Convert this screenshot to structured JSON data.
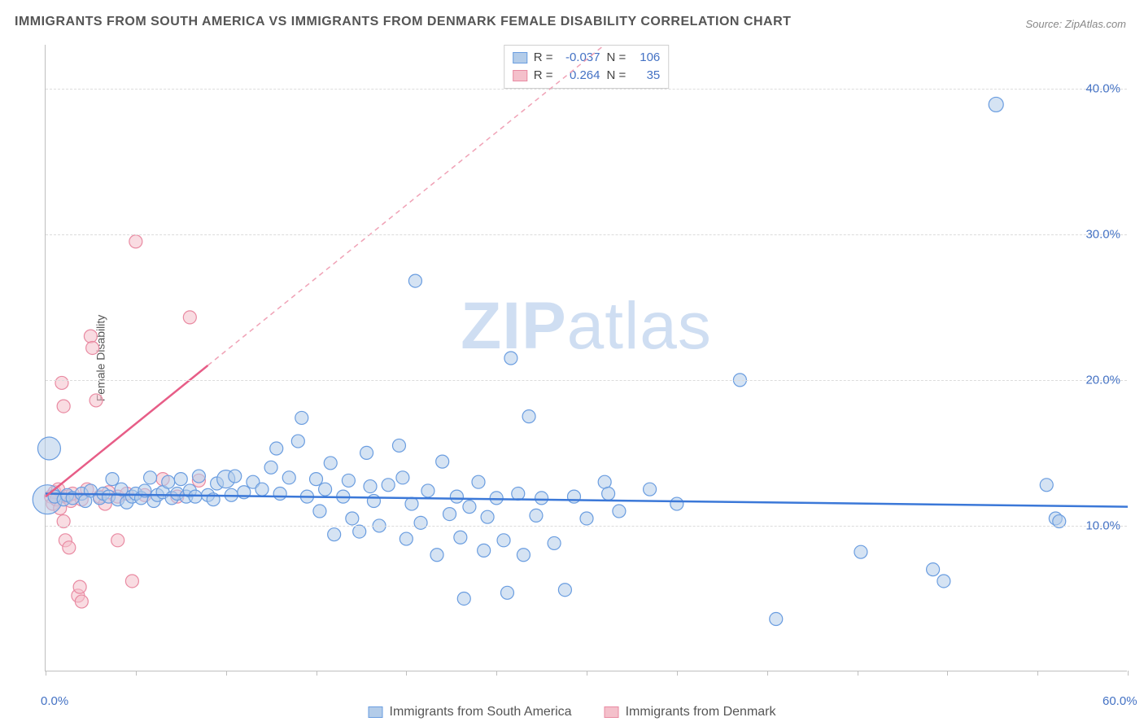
{
  "title": "IMMIGRANTS FROM SOUTH AMERICA VS IMMIGRANTS FROM DENMARK FEMALE DISABILITY CORRELATION CHART",
  "source": "Source: ZipAtlas.com",
  "ylabel": "Female Disability",
  "watermark_bold": "ZIP",
  "watermark_rest": "atlas",
  "chart": {
    "type": "scatter",
    "background_color": "#ffffff",
    "grid_color": "#dcdcdc",
    "axis_color": "#bfbfbf",
    "xlim": [
      0,
      60
    ],
    "ylim": [
      0,
      43
    ],
    "x_ticks": [
      0,
      5,
      10,
      15,
      20,
      25,
      30,
      35,
      40,
      45,
      50,
      55,
      60
    ],
    "x_tick_labels_shown": {
      "0": "0.0%",
      "60": "60.0%"
    },
    "y_gridlines": [
      10,
      20,
      30,
      40
    ],
    "y_tick_labels": {
      "10": "10.0%",
      "20": "20.0%",
      "30": "30.0%",
      "40": "40.0%"
    },
    "tick_label_color": "#4472c4",
    "tick_label_fontsize": 15,
    "series": [
      {
        "name": "Immigrants from South America",
        "fill": "#b3cce9",
        "stroke": "#6a9de0",
        "fill_opacity": 0.55,
        "marker_r_default": 8,
        "trend": {
          "color": "#3b78d8",
          "width": 2.5,
          "style": "solid",
          "y1": 12.2,
          "y2": 11.3
        },
        "stats": {
          "R": "-0.037",
          "N": "106"
        },
        "points": [
          {
            "x": 0.1,
            "y": 11.8,
            "r": 18
          },
          {
            "x": 0.2,
            "y": 15.3,
            "r": 14
          },
          {
            "x": 0.5,
            "y": 12.0
          },
          {
            "x": 1.0,
            "y": 11.8
          },
          {
            "x": 1.2,
            "y": 12.1
          },
          {
            "x": 1.5,
            "y": 11.9
          },
          {
            "x": 2.0,
            "y": 12.2
          },
          {
            "x": 2.2,
            "y": 11.7
          },
          {
            "x": 2.5,
            "y": 12.4
          },
          {
            "x": 3.0,
            "y": 11.9
          },
          {
            "x": 3.2,
            "y": 12.2
          },
          {
            "x": 3.5,
            "y": 12.0
          },
          {
            "x": 3.7,
            "y": 13.2
          },
          {
            "x": 4.0,
            "y": 11.8
          },
          {
            "x": 4.2,
            "y": 12.5
          },
          {
            "x": 4.5,
            "y": 11.6
          },
          {
            "x": 4.8,
            "y": 12.0
          },
          {
            "x": 5.0,
            "y": 12.2
          },
          {
            "x": 5.3,
            "y": 11.9
          },
          {
            "x": 5.5,
            "y": 12.4
          },
          {
            "x": 5.8,
            "y": 13.3
          },
          {
            "x": 6.0,
            "y": 11.7
          },
          {
            "x": 6.2,
            "y": 12.1
          },
          {
            "x": 6.5,
            "y": 12.3
          },
          {
            "x": 6.8,
            "y": 13.0
          },
          {
            "x": 7.0,
            "y": 11.9
          },
          {
            "x": 7.3,
            "y": 12.2
          },
          {
            "x": 7.5,
            "y": 13.2
          },
          {
            "x": 7.8,
            "y": 12.0
          },
          {
            "x": 8.0,
            "y": 12.4
          },
          {
            "x": 8.3,
            "y": 12.0
          },
          {
            "x": 8.5,
            "y": 13.4
          },
          {
            "x": 9.0,
            "y": 12.1
          },
          {
            "x": 9.3,
            "y": 11.8
          },
          {
            "x": 9.5,
            "y": 12.9
          },
          {
            "x": 10.0,
            "y": 13.2,
            "r": 11
          },
          {
            "x": 10.3,
            "y": 12.1
          },
          {
            "x": 10.5,
            "y": 13.4
          },
          {
            "x": 11.0,
            "y": 12.3
          },
          {
            "x": 11.5,
            "y": 13.0
          },
          {
            "x": 12.0,
            "y": 12.5
          },
          {
            "x": 12.5,
            "y": 14.0
          },
          {
            "x": 12.8,
            "y": 15.3
          },
          {
            "x": 13.0,
            "y": 12.2
          },
          {
            "x": 13.5,
            "y": 13.3
          },
          {
            "x": 14.0,
            "y": 15.8
          },
          {
            "x": 14.2,
            "y": 17.4
          },
          {
            "x": 14.5,
            "y": 12.0
          },
          {
            "x": 15.0,
            "y": 13.2
          },
          {
            "x": 15.2,
            "y": 11.0
          },
          {
            "x": 15.5,
            "y": 12.5
          },
          {
            "x": 15.8,
            "y": 14.3
          },
          {
            "x": 16.0,
            "y": 9.4
          },
          {
            "x": 16.5,
            "y": 12.0
          },
          {
            "x": 16.8,
            "y": 13.1
          },
          {
            "x": 17.0,
            "y": 10.5
          },
          {
            "x": 17.4,
            "y": 9.6
          },
          {
            "x": 17.8,
            "y": 15.0
          },
          {
            "x": 18.0,
            "y": 12.7
          },
          {
            "x": 18.2,
            "y": 11.7
          },
          {
            "x": 18.5,
            "y": 10.0
          },
          {
            "x": 19.0,
            "y": 12.8
          },
          {
            "x": 19.6,
            "y": 15.5
          },
          {
            "x": 19.8,
            "y": 13.3
          },
          {
            "x": 20.0,
            "y": 9.1
          },
          {
            "x": 20.3,
            "y": 11.5
          },
          {
            "x": 20.5,
            "y": 26.8
          },
          {
            "x": 20.8,
            "y": 10.2
          },
          {
            "x": 21.2,
            "y": 12.4
          },
          {
            "x": 21.7,
            "y": 8.0
          },
          {
            "x": 22.0,
            "y": 14.4
          },
          {
            "x": 22.4,
            "y": 10.8
          },
          {
            "x": 22.8,
            "y": 12.0
          },
          {
            "x": 23.0,
            "y": 9.2
          },
          {
            "x": 23.2,
            "y": 5.0
          },
          {
            "x": 23.5,
            "y": 11.3
          },
          {
            "x": 24.0,
            "y": 13.0
          },
          {
            "x": 24.3,
            "y": 8.3
          },
          {
            "x": 24.5,
            "y": 10.6
          },
          {
            "x": 25.0,
            "y": 11.9
          },
          {
            "x": 25.4,
            "y": 9.0
          },
          {
            "x": 25.6,
            "y": 5.4
          },
          {
            "x": 25.8,
            "y": 21.5
          },
          {
            "x": 26.2,
            "y": 12.2
          },
          {
            "x": 26.5,
            "y": 8.0
          },
          {
            "x": 26.8,
            "y": 17.5
          },
          {
            "x": 27.2,
            "y": 10.7
          },
          {
            "x": 27.5,
            "y": 11.9
          },
          {
            "x": 28.2,
            "y": 8.8
          },
          {
            "x": 28.8,
            "y": 5.6
          },
          {
            "x": 29.3,
            "y": 12.0
          },
          {
            "x": 30.0,
            "y": 10.5
          },
          {
            "x": 31.0,
            "y": 13.0
          },
          {
            "x": 31.2,
            "y": 12.2
          },
          {
            "x": 31.8,
            "y": 11.0
          },
          {
            "x": 33.5,
            "y": 12.5
          },
          {
            "x": 35.0,
            "y": 11.5
          },
          {
            "x": 38.5,
            "y": 20.0
          },
          {
            "x": 40.5,
            "y": 3.6
          },
          {
            "x": 45.2,
            "y": 8.2
          },
          {
            "x": 49.2,
            "y": 7.0
          },
          {
            "x": 49.8,
            "y": 6.2
          },
          {
            "x": 52.7,
            "y": 38.9,
            "r": 9
          },
          {
            "x": 55.5,
            "y": 12.8
          },
          {
            "x": 56.0,
            "y": 10.5
          },
          {
            "x": 56.2,
            "y": 10.3
          }
        ]
      },
      {
        "name": "Immigrants from Denmark",
        "fill": "#f4c0cb",
        "stroke": "#e98aa2",
        "fill_opacity": 0.55,
        "marker_r_default": 8,
        "trend_solid": {
          "color": "#e75d87",
          "width": 2.5,
          "x1": 0,
          "y1": 12.0,
          "x2": 9.0,
          "y2": 21.0
        },
        "trend_dashed": {
          "color": "#f0a2b6",
          "width": 1.5,
          "x1": 9.0,
          "y1": 21.0,
          "x2": 31.0,
          "y2": 43.0
        },
        "stats": {
          "R": "0.264",
          "N": "35"
        },
        "points": [
          {
            "x": 0.3,
            "y": 12.0
          },
          {
            "x": 0.4,
            "y": 11.5
          },
          {
            "x": 0.5,
            "y": 12.3
          },
          {
            "x": 0.6,
            "y": 11.8
          },
          {
            "x": 0.7,
            "y": 12.5
          },
          {
            "x": 0.8,
            "y": 11.2
          },
          {
            "x": 0.9,
            "y": 19.8
          },
          {
            "x": 1.0,
            "y": 18.2
          },
          {
            "x": 1.0,
            "y": 10.3
          },
          {
            "x": 1.1,
            "y": 9.0
          },
          {
            "x": 1.2,
            "y": 12.0
          },
          {
            "x": 1.3,
            "y": 8.5
          },
          {
            "x": 1.4,
            "y": 11.7
          },
          {
            "x": 1.5,
            "y": 12.2
          },
          {
            "x": 1.8,
            "y": 5.2
          },
          {
            "x": 1.9,
            "y": 5.8
          },
          {
            "x": 2.0,
            "y": 4.8
          },
          {
            "x": 2.0,
            "y": 11.8
          },
          {
            "x": 2.3,
            "y": 12.5
          },
          {
            "x": 2.5,
            "y": 23.0
          },
          {
            "x": 2.6,
            "y": 22.2
          },
          {
            "x": 2.8,
            "y": 18.6
          },
          {
            "x": 3.0,
            "y": 12.0
          },
          {
            "x": 3.3,
            "y": 11.5
          },
          {
            "x": 3.5,
            "y": 12.3
          },
          {
            "x": 4.0,
            "y": 12.0
          },
          {
            "x": 4.0,
            "y": 9.0
          },
          {
            "x": 4.5,
            "y": 12.2
          },
          {
            "x": 4.8,
            "y": 6.2
          },
          {
            "x": 5.0,
            "y": 29.5
          },
          {
            "x": 5.5,
            "y": 12.1
          },
          {
            "x": 6.5,
            "y": 13.2
          },
          {
            "x": 7.3,
            "y": 12.0
          },
          {
            "x": 8.0,
            "y": 24.3
          },
          {
            "x": 8.5,
            "y": 13.1
          }
        ]
      }
    ]
  },
  "stats_legend": {
    "r_label": "R =",
    "n_label": "N ="
  },
  "bottom_legend": {
    "series1": "Immigrants from South America",
    "series2": "Immigrants from Denmark"
  }
}
